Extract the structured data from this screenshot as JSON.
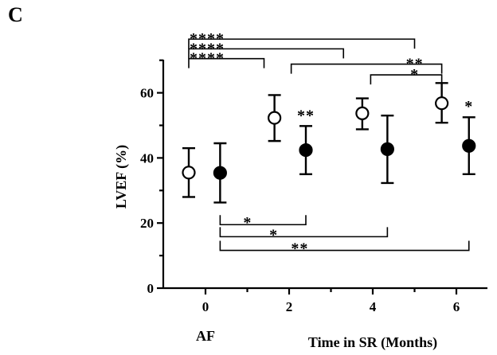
{
  "chart_data": {
    "type": "scatter",
    "panel_label": "C",
    "ylabel": "LVEF (%)",
    "xlabel": "Time in SR (Months)",
    "baseline_label": "AF",
    "ylim": [
      0,
      70
    ],
    "xlim": [
      -0.8,
      6.6
    ],
    "yticks": [
      0,
      20,
      40,
      60
    ],
    "yticks_minor": [
      10,
      30,
      50,
      70
    ],
    "xticks": [
      0,
      2,
      4,
      6
    ],
    "xticks_minor": [
      1,
      3,
      5
    ],
    "grid": false,
    "series": [
      {
        "marker": "open-circle",
        "points": [
          {
            "x": -0.4,
            "y": 35.5,
            "err_low": 28,
            "err_high": 43
          },
          {
            "x": 1.65,
            "y": 52.3,
            "err_low": 45.2,
            "err_high": 59.3
          },
          {
            "x": 3.75,
            "y": 53.7,
            "err_low": 48.8,
            "err_high": 58.3
          },
          {
            "x": 5.65,
            "y": 56.8,
            "err_low": 50.8,
            "err_high": 63
          }
        ]
      },
      {
        "marker": "filled-circle",
        "points": [
          {
            "x": 0.35,
            "y": 35.4,
            "err_low": 26.3,
            "err_high": 44.5
          },
          {
            "x": 2.4,
            "y": 42.4,
            "err_low": 35,
            "err_high": 49.8
          },
          {
            "x": 4.35,
            "y": 42.7,
            "err_low": 32.3,
            "err_high": 53
          },
          {
            "x": 6.3,
            "y": 43.7,
            "err_low": 35,
            "err_high": 52.5
          }
        ]
      }
    ],
    "point_annotations": [
      {
        "text": "**",
        "x": 2.4,
        "y": 51.5
      },
      {
        "text": "*",
        "x": 6.3,
        "y": 54.3
      }
    ],
    "brackets": [
      {
        "text": "****",
        "x1": -0.4,
        "x2": 5.0,
        "y": 76.5,
        "dir": "down",
        "label_at": "left"
      },
      {
        "text": "****",
        "x1": -0.4,
        "x2": 3.3,
        "y": 73.5,
        "dir": "down",
        "label_at": "left"
      },
      {
        "text": "****",
        "x1": -0.4,
        "x2": 1.4,
        "y": 70.5,
        "dir": "down",
        "label_at": "left"
      },
      {
        "text": "**",
        "x1": 2.05,
        "x2": 5.65,
        "y": 68.8,
        "dir": "down",
        "label_at": "right"
      },
      {
        "text": "*",
        "x1": 3.95,
        "x2": 5.65,
        "y": 65.5,
        "dir": "down",
        "label_at": "right"
      },
      {
        "text": "*",
        "x1": 0.35,
        "x2": 2.4,
        "y": 19.5,
        "dir": "up",
        "label_at": "center"
      },
      {
        "text": "*",
        "x1": 0.35,
        "x2": 4.35,
        "y": 15.8,
        "dir": "up",
        "label_at": "center"
      },
      {
        "text": "**",
        "x1": 0.35,
        "x2": 6.3,
        "y": 11.6,
        "dir": "up",
        "label_at": "center"
      }
    ]
  }
}
